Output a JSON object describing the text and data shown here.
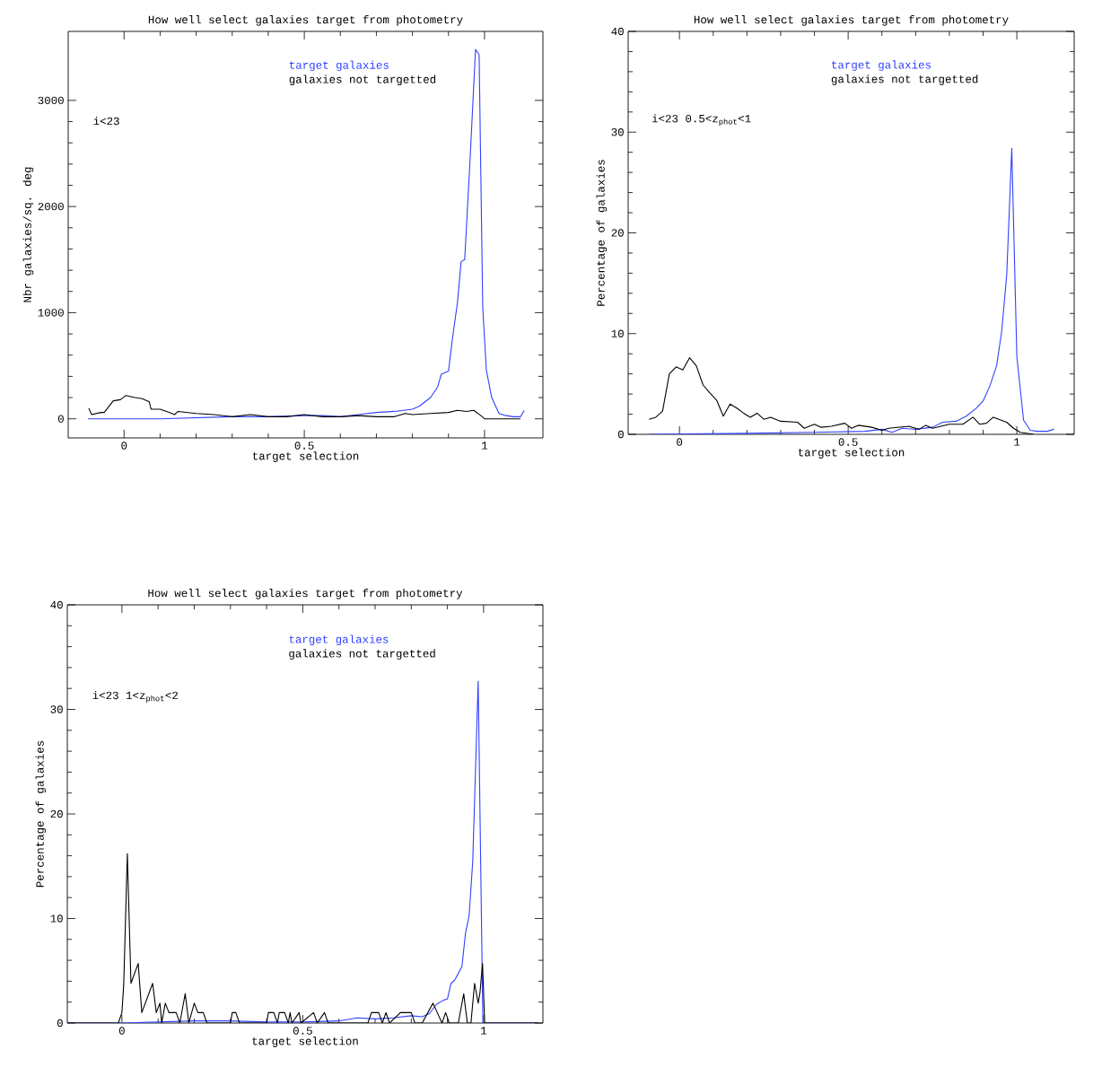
{
  "chart_data": [
    {
      "type": "line",
      "title": "How well select galaxies target from photometry",
      "xlabel": "target selection",
      "ylabel": "Nbr galaxies/sq. deg",
      "xlim": [
        -0.155,
        1.162
      ],
      "ylim": [
        -180,
        3650
      ],
      "xticks": [
        0,
        0.5,
        1
      ],
      "yticks": [
        0,
        1000,
        2000,
        3000
      ],
      "legend": "top",
      "annotations": [
        "i<23"
      ],
      "series": [
        {
          "name": "target galaxies",
          "color": "#3040ff",
          "x": [
            -0.1,
            0.0,
            0.1,
            0.2,
            0.3,
            0.4,
            0.5,
            0.55,
            0.6,
            0.65,
            0.7,
            0.75,
            0.8,
            0.82,
            0.85,
            0.87,
            0.88,
            0.9,
            0.91,
            0.925,
            0.935,
            0.945,
            0.96,
            0.975,
            0.985,
            0.995,
            1.005,
            1.02,
            1.04,
            1.06,
            1.08,
            1.1,
            1.11
          ],
          "values": [
            0,
            0,
            0,
            10,
            20,
            20,
            30,
            30,
            20,
            40,
            60,
            70,
            90,
            120,
            200,
            300,
            420,
            450,
            730,
            1100,
            1480,
            1500,
            2450,
            3480,
            3430,
            1050,
            460,
            200,
            50,
            30,
            20,
            20,
            80
          ]
        },
        {
          "name": "galaxies not targetted",
          "color": "#000000",
          "x": [
            -0.098,
            -0.09,
            -0.065,
            -0.055,
            -0.03,
            -0.01,
            0.005,
            0.03,
            0.05,
            0.07,
            0.075,
            0.1,
            0.125,
            0.14,
            0.15,
            0.2,
            0.25,
            0.3,
            0.35,
            0.4,
            0.45,
            0.5,
            0.55,
            0.6,
            0.65,
            0.7,
            0.75,
            0.78,
            0.8,
            0.85,
            0.9,
            0.925,
            0.95,
            0.97,
            0.99,
            1.0,
            1.05,
            1.1
          ],
          "values": [
            100,
            40,
            60,
            60,
            170,
            180,
            220,
            200,
            190,
            160,
            90,
            90,
            60,
            40,
            70,
            50,
            40,
            20,
            40,
            20,
            20,
            40,
            20,
            20,
            30,
            20,
            20,
            50,
            40,
            50,
            60,
            80,
            70,
            80,
            30,
            0,
            0,
            0
          ]
        }
      ]
    },
    {
      "type": "line",
      "title": "How well select galaxies target from photometry",
      "xlabel": "target selection",
      "ylabel": "Percentage of galaxies",
      "xlim": [
        -0.152,
        1.17
      ],
      "ylim": [
        0,
        40
      ],
      "xticks": [
        0,
        0.5,
        1
      ],
      "yticks": [
        0,
        10,
        20,
        30,
        40
      ],
      "legend": "top",
      "annotations": [
        "i<23   0.5<z$_{phot}$<1"
      ],
      "series": [
        {
          "name": "target galaxies",
          "color": "#3040ff",
          "x": [
            -0.09,
            0.2,
            0.4,
            0.55,
            0.6,
            0.63,
            0.66,
            0.7,
            0.75,
            0.78,
            0.82,
            0.85,
            0.88,
            0.9,
            0.92,
            0.94,
            0.955,
            0.97,
            0.985,
            1.0,
            1.02,
            1.04,
            1.06,
            1.09,
            1.11
          ],
          "values": [
            0,
            0.1,
            0.2,
            0.3,
            0.5,
            0.2,
            0.6,
            0.5,
            0.7,
            1.2,
            1.3,
            1.8,
            2.6,
            3.3,
            4.8,
            6.8,
            10.2,
            15.8,
            28.4,
            7.7,
            1.4,
            0.4,
            0.3,
            0.3,
            0.5
          ]
        },
        {
          "name": "galaxies not targetted",
          "color": "#000000",
          "x": [
            -0.09,
            -0.07,
            -0.05,
            -0.03,
            -0.01,
            0.01,
            0.03,
            0.05,
            0.07,
            0.09,
            0.11,
            0.13,
            0.15,
            0.17,
            0.19,
            0.21,
            0.23,
            0.25,
            0.27,
            0.3,
            0.35,
            0.37,
            0.4,
            0.42,
            0.45,
            0.49,
            0.51,
            0.53,
            0.57,
            0.6,
            0.62,
            0.68,
            0.71,
            0.73,
            0.75,
            0.8,
            0.84,
            0.87,
            0.89,
            0.91,
            0.93,
            0.97,
            0.99,
            1.01,
            1.05
          ],
          "values": [
            1.5,
            1.7,
            2.3,
            6.0,
            6.7,
            6.4,
            7.6,
            6.8,
            4.9,
            4.1,
            3.4,
            1.8,
            3.0,
            2.6,
            2.1,
            1.7,
            2.1,
            1.5,
            1.7,
            1.3,
            1.2,
            0.6,
            1.0,
            0.7,
            0.8,
            1.1,
            0.6,
            0.9,
            0.7,
            0.4,
            0.6,
            0.8,
            0.5,
            0.9,
            0.6,
            1.0,
            1.0,
            1.7,
            1.0,
            1.1,
            1.7,
            1.2,
            0.6,
            0.2,
            0
          ]
        }
      ]
    },
    {
      "type": "line",
      "title": "How well select galaxies target from photometry",
      "xlabel": "target selection",
      "ylabel": "Percentage of galaxies",
      "xlim": [
        -0.151,
        1.164
      ],
      "ylim": [
        0,
        40
      ],
      "xticks": [
        0,
        0.5,
        1
      ],
      "yticks": [
        0,
        10,
        20,
        30,
        40
      ],
      "legend": "top",
      "annotations": [
        "i<23   1<z$_{phot}$<2"
      ],
      "series": [
        {
          "name": "target galaxies",
          "color": "#3040ff",
          "x": [
            -0.15,
            0.0,
            0.1,
            0.2,
            0.3,
            0.4,
            0.5,
            0.6,
            0.65,
            0.7,
            0.75,
            0.8,
            0.83,
            0.85,
            0.87,
            0.89,
            0.9,
            0.91,
            0.92,
            0.94,
            0.95,
            0.96,
            0.97,
            0.985,
            0.998,
            1.15
          ],
          "values": [
            0,
            0,
            0.1,
            0.2,
            0.2,
            0.1,
            0.1,
            0.2,
            0.5,
            0.4,
            0.5,
            0.7,
            0.6,
            0.9,
            1.8,
            2.2,
            2.3,
            3.8,
            4.1,
            5.4,
            8.6,
            10.3,
            15.5,
            32.7,
            0,
            0
          ]
        },
        {
          "name": "galaxies not targetted",
          "color": "#000000",
          "x": [
            -0.15,
            -0.01,
            0.0,
            0.005,
            0.015,
            0.025,
            0.045,
            0.055,
            0.085,
            0.095,
            0.105,
            0.11,
            0.12,
            0.13,
            0.15,
            0.16,
            0.175,
            0.185,
            0.2,
            0.21,
            0.225,
            0.235,
            0.3,
            0.305,
            0.315,
            0.325,
            0.4,
            0.405,
            0.42,
            0.43,
            0.435,
            0.45,
            0.46,
            0.465,
            0.47,
            0.49,
            0.495,
            0.53,
            0.54,
            0.56,
            0.57,
            0.68,
            0.69,
            0.71,
            0.72,
            0.73,
            0.74,
            0.77,
            0.8,
            0.81,
            0.83,
            0.86,
            0.885,
            0.895,
            0.905,
            0.93,
            0.945,
            0.955,
            0.965,
            0.975,
            0.985,
            0.99,
            0.997,
            1.003,
            1.15
          ],
          "values": [
            0,
            0,
            1.0,
            3.7,
            16.2,
            3.8,
            5.7,
            1.0,
            3.8,
            1.0,
            1.9,
            0,
            1.9,
            1.0,
            1.0,
            0,
            2.8,
            0,
            1.9,
            1.0,
            1.0,
            0,
            0,
            1.0,
            1.0,
            0,
            0,
            1.0,
            1.0,
            0,
            1.0,
            1.0,
            0,
            1.0,
            0,
            1.0,
            0,
            1.0,
            0,
            1.0,
            0,
            0,
            1.0,
            1.0,
            0,
            1.0,
            0,
            1.0,
            1.0,
            0,
            0,
            1.9,
            0,
            1.0,
            0,
            0,
            2.8,
            0,
            0,
            3.8,
            1.9,
            2.9,
            5.7,
            0,
            0
          ]
        }
      ]
    }
  ]
}
